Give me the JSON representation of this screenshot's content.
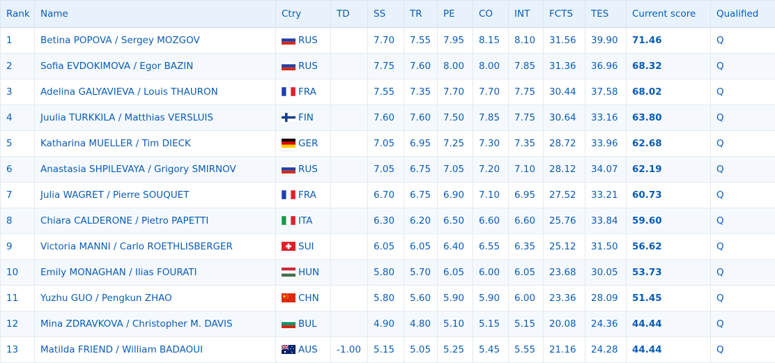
{
  "columns": [
    "Rank",
    "Name",
    "Ctry",
    "TD",
    "SS",
    "TR",
    "PE",
    "CO",
    "INT",
    "FCTS",
    "TES",
    "Current score",
    "Qualified"
  ],
  "rows": [
    {
      "rank": "1",
      "name": "Betina POPOVA / Sergey MOZGOV",
      "flag": "ru-flag-icon",
      "ctry": "RUS",
      "td": "",
      "ss": "7.70",
      "tr": "7.55",
      "pe": "7.95",
      "co": "8.15",
      "int": "8.10",
      "fcts": "31.56",
      "tes": "39.90",
      "score": "71.46",
      "qualified": "Q"
    },
    {
      "rank": "2",
      "name": "Sofia EVDOKIMOVA / Egor BAZIN",
      "flag": "ru-flag-icon",
      "ctry": "RUS",
      "td": "",
      "ss": "7.75",
      "tr": "7.60",
      "pe": "8.00",
      "co": "8.00",
      "int": "7.85",
      "fcts": "31.36",
      "tes": "36.96",
      "score": "68.32",
      "qualified": "Q"
    },
    {
      "rank": "3",
      "name": "Adelina GALYAVIEVA / Louis THAURON",
      "flag": "fr-flag-icon",
      "ctry": "FRA",
      "td": "",
      "ss": "7.55",
      "tr": "7.35",
      "pe": "7.70",
      "co": "7.70",
      "int": "7.75",
      "fcts": "30.44",
      "tes": "37.58",
      "score": "68.02",
      "qualified": "Q"
    },
    {
      "rank": "4",
      "name": "Juulia TURKKILA / Matthias VERSLUIS",
      "flag": "fi-flag-icon",
      "ctry": "FIN",
      "td": "",
      "ss": "7.60",
      "tr": "7.60",
      "pe": "7.50",
      "co": "7.85",
      "int": "7.75",
      "fcts": "30.64",
      "tes": "33.16",
      "score": "63.80",
      "qualified": "Q"
    },
    {
      "rank": "5",
      "name": "Katharina MUELLER / Tim DIECK",
      "flag": "de-flag-icon",
      "ctry": "GER",
      "td": "",
      "ss": "7.05",
      "tr": "6.95",
      "pe": "7.25",
      "co": "7.30",
      "int": "7.35",
      "fcts": "28.72",
      "tes": "33.96",
      "score": "62.68",
      "qualified": "Q"
    },
    {
      "rank": "6",
      "name": "Anastasia SHPILEVAYA / Grigory SMIRNOV",
      "flag": "ru-flag-icon",
      "ctry": "RUS",
      "td": "",
      "ss": "7.05",
      "tr": "6.75",
      "pe": "7.05",
      "co": "7.20",
      "int": "7.10",
      "fcts": "28.12",
      "tes": "34.07",
      "score": "62.19",
      "qualified": "Q"
    },
    {
      "rank": "7",
      "name": "Julia WAGRET / Pierre SOUQUET",
      "flag": "fr-flag-icon",
      "ctry": "FRA",
      "td": "",
      "ss": "6.70",
      "tr": "6.75",
      "pe": "6.90",
      "co": "7.10",
      "int": "6.95",
      "fcts": "27.52",
      "tes": "33.21",
      "score": "60.73",
      "qualified": "Q"
    },
    {
      "rank": "8",
      "name": "Chiara CALDERONE / Pietro PAPETTI",
      "flag": "it-flag-icon",
      "ctry": "ITA",
      "td": "",
      "ss": "6.30",
      "tr": "6.20",
      "pe": "6.50",
      "co": "6.60",
      "int": "6.60",
      "fcts": "25.76",
      "tes": "33.84",
      "score": "59.60",
      "qualified": "Q"
    },
    {
      "rank": "9",
      "name": "Victoria MANNI / Carlo ROETHLISBERGER",
      "flag": "ch-flag-icon",
      "ctry": "SUI",
      "td": "",
      "ss": "6.05",
      "tr": "6.05",
      "pe": "6.40",
      "co": "6.55",
      "int": "6.35",
      "fcts": "25.12",
      "tes": "31.50",
      "score": "56.62",
      "qualified": "Q"
    },
    {
      "rank": "10",
      "name": "Emily MONAGHAN / Ilias FOURATI",
      "flag": "hu-flag-icon",
      "ctry": "HUN",
      "td": "",
      "ss": "5.80",
      "tr": "5.70",
      "pe": "6.05",
      "co": "6.00",
      "int": "6.05",
      "fcts": "23.68",
      "tes": "30.05",
      "score": "53.73",
      "qualified": "Q"
    },
    {
      "rank": "11",
      "name": "Yuzhu GUO / Pengkun ZHAO",
      "flag": "cn-flag-icon",
      "ctry": "CHN",
      "td": "",
      "ss": "5.80",
      "tr": "5.60",
      "pe": "5.90",
      "co": "5.90",
      "int": "6.00",
      "fcts": "23.36",
      "tes": "28.09",
      "score": "51.45",
      "qualified": "Q"
    },
    {
      "rank": "12",
      "name": "Mina ZDRAVKOVA / Christopher M. DAVIS",
      "flag": "bg-flag-icon",
      "ctry": "BUL",
      "td": "",
      "ss": "4.90",
      "tr": "4.80",
      "pe": "5.10",
      "co": "5.15",
      "int": "5.15",
      "fcts": "20.08",
      "tes": "24.36",
      "score": "44.44",
      "qualified": "Q"
    },
    {
      "rank": "13",
      "name": "Matilda FRIEND / William BADAOUI",
      "flag": "au-flag-icon",
      "ctry": "AUS",
      "td": "-1.00",
      "ss": "5.15",
      "tr": "5.05",
      "pe": "5.25",
      "co": "5.45",
      "int": "5.55",
      "fcts": "21.16",
      "tes": "24.28",
      "score": "44.44",
      "qualified": "Q"
    }
  ]
}
